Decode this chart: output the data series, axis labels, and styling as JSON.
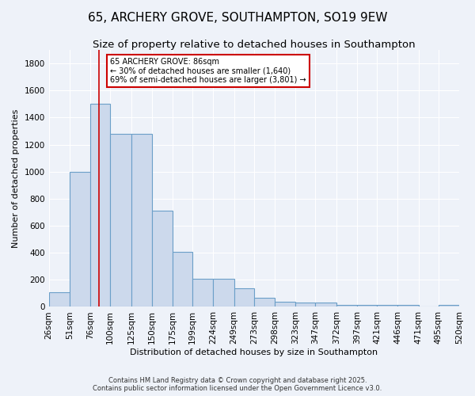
{
  "title": "65, ARCHERY GROVE, SOUTHAMPTON, SO19 9EW",
  "subtitle": "Size of property relative to detached houses in Southampton",
  "xlabel": "Distribution of detached houses by size in Southampton",
  "ylabel": "Number of detached properties",
  "bar_edges": [
    26,
    51,
    76,
    100,
    125,
    150,
    175,
    199,
    224,
    249,
    273,
    298,
    323,
    347,
    372,
    397,
    421,
    446,
    471,
    495,
    520
  ],
  "bar_heights": [
    110,
    1000,
    1500,
    1280,
    1280,
    710,
    405,
    210,
    210,
    135,
    70,
    40,
    30,
    30,
    15,
    15,
    15,
    15,
    0,
    15
  ],
  "bar_color": "#ccd9ec",
  "bar_edge_color": "#6b9fc8",
  "property_size": 86,
  "red_line_color": "#cc0000",
  "annotation_text": "65 ARCHERY GROVE: 86sqm\n← 30% of detached houses are smaller (1,640)\n69% of semi-detached houses are larger (3,801) →",
  "annotation_box_color": "#ffffff",
  "annotation_box_edge": "#cc0000",
  "ylim": [
    0,
    1900
  ],
  "yticks": [
    0,
    200,
    400,
    600,
    800,
    1000,
    1200,
    1400,
    1600,
    1800
  ],
  "bg_color": "#eef2f9",
  "grid_color": "#ffffff",
  "footer_text": "Contains HM Land Registry data © Crown copyright and database right 2025.\nContains public sector information licensed under the Open Government Licence v3.0.",
  "title_fontsize": 11,
  "subtitle_fontsize": 9.5,
  "label_fontsize": 8,
  "tick_fontsize": 7.5,
  "footer_fontsize": 6
}
